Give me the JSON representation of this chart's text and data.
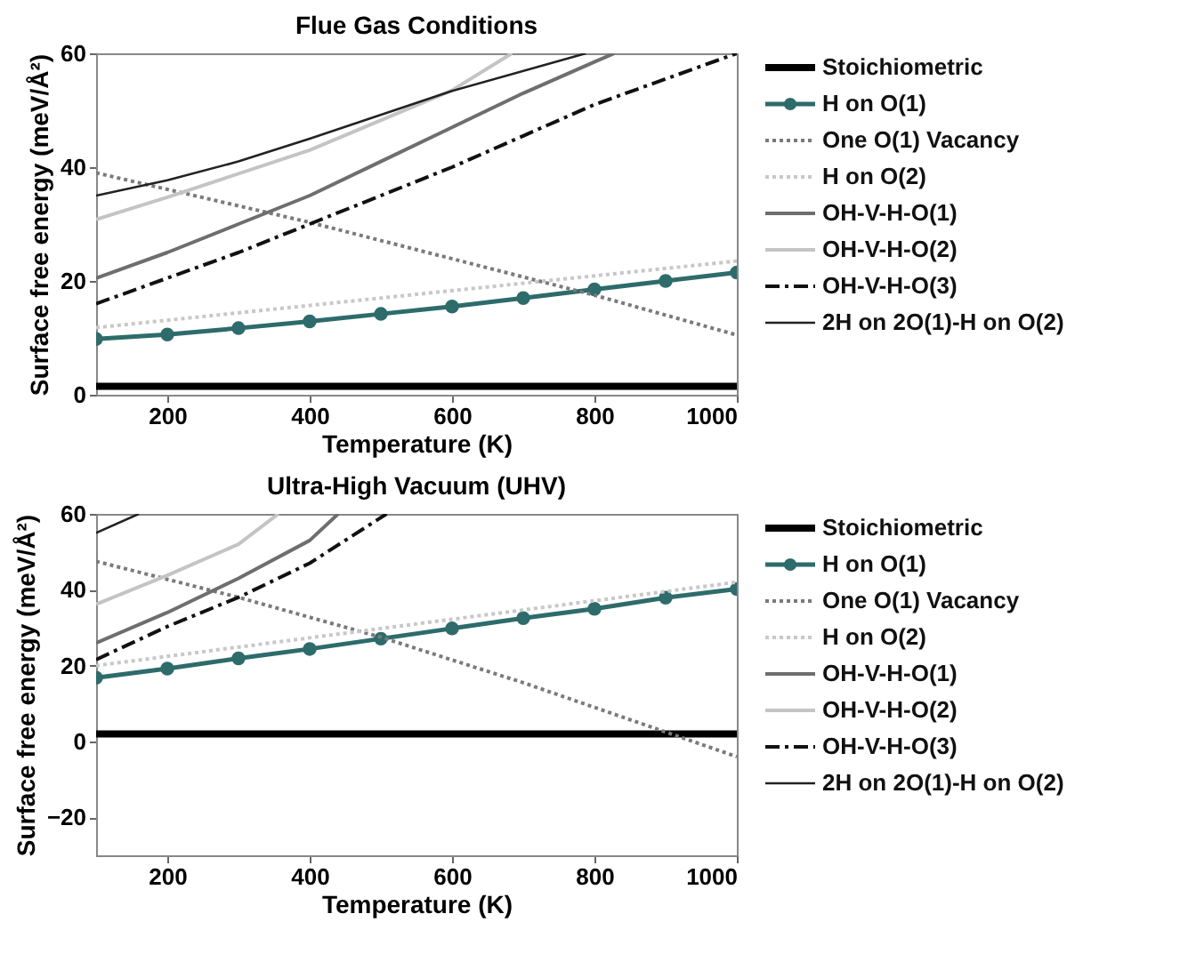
{
  "chart_data": [
    {
      "type": "line",
      "title": "Flue Gas Conditions",
      "xlabel": "Temperature (K)",
      "ylabel": "Surface free energy (meV/Å²)",
      "xlim": [
        100,
        1000
      ],
      "xticks": [
        200,
        400,
        600,
        800,
        1000
      ],
      "ylim": [
        0,
        60
      ],
      "yticks": [
        0,
        20,
        40,
        60
      ],
      "legend": "right",
      "grid": false,
      "series": [
        {
          "name": "Stoichiometric",
          "color": "#000000",
          "line_style": "solid",
          "marker": "none",
          "x": [
            100,
            1000
          ],
          "values": [
            1.5,
            1.5
          ]
        },
        {
          "name": "H on O(1)",
          "color": "#2e6b6b",
          "line_style": "solid",
          "marker": "circle",
          "x": [
            100,
            200,
            300,
            400,
            500,
            600,
            700,
            800,
            900,
            1000
          ],
          "values": [
            9.8,
            10.6,
            11.7,
            12.9,
            14.2,
            15.5,
            17,
            18.5,
            20,
            21.5
          ]
        },
        {
          "name": "One O(1) Vacancy",
          "color": "#7a7a7a",
          "line_style": "dotted",
          "marker": "none",
          "x": [
            100,
            400,
            800,
            1000
          ],
          "values": [
            39,
            30.3,
            17.5,
            10.5
          ]
        },
        {
          "name": "H on O(2)",
          "color": "#c8c8c8",
          "line_style": "dotted",
          "marker": "none",
          "x": [
            100,
            1000
          ],
          "values": [
            11.8,
            23.5
          ]
        },
        {
          "name": "OH-V-H-O(1)",
          "color": "#6e6e6e",
          "line_style": "solid",
          "marker": "none",
          "x": [
            100,
            200,
            300,
            400,
            500,
            600,
            700,
            800,
            828
          ],
          "values": [
            20.5,
            25,
            30,
            35,
            41,
            47,
            53,
            58.5,
            60
          ]
        },
        {
          "name": "OH-V-H-O(2)",
          "color": "#c4c4c4",
          "line_style": "solid",
          "marker": "none",
          "x": [
            100,
            200,
            400,
            600,
            684
          ],
          "values": [
            30.8,
            34.7,
            43,
            53.5,
            60
          ]
        },
        {
          "name": "OH-V-H-O(3)",
          "color": "#111111",
          "line_style": "dashdot",
          "marker": "none",
          "x": [
            100,
            200,
            300,
            400,
            500,
            600,
            700,
            800,
            900,
            1000
          ],
          "values": [
            16,
            20.5,
            25,
            30,
            35,
            40,
            45.5,
            51,
            55.5,
            60
          ]
        },
        {
          "name": "2H on 2O(1)-H on O(2)",
          "color": "#222222",
          "line_style": "solid",
          "marker": "none",
          "x": [
            100,
            200,
            300,
            400,
            600,
            788
          ],
          "values": [
            35,
            37.7,
            41,
            45,
            53.4,
            60
          ]
        }
      ]
    },
    {
      "type": "line",
      "title": "Ultra-High Vacuum (UHV)",
      "xlabel": "Temperature (K)",
      "ylabel": "Surface free energy (meV/Å²)",
      "xlim": [
        100,
        1000
      ],
      "xticks": [
        200,
        400,
        600,
        800,
        1000
      ],
      "ylim": [
        -30,
        60
      ],
      "yticks": [
        -20,
        0,
        20,
        40,
        60
      ],
      "legend": "right",
      "grid": false,
      "series": [
        {
          "name": "Stoichiometric",
          "color": "#000000",
          "line_style": "solid",
          "marker": "none",
          "x": [
            100,
            1000
          ],
          "values": [
            2,
            2
          ]
        },
        {
          "name": "H on O(1)",
          "color": "#2e6b6b",
          "line_style": "solid",
          "marker": "circle",
          "x": [
            100,
            200,
            300,
            400,
            500,
            600,
            700,
            800,
            900,
            1000
          ],
          "values": [
            16.8,
            19.2,
            21.9,
            24.4,
            27.1,
            29.8,
            32.5,
            35,
            37.9,
            40.2
          ]
        },
        {
          "name": "One O(1) Vacancy",
          "color": "#7a7a7a",
          "line_style": "dotted",
          "marker": "none",
          "x": [
            100,
            300,
            500,
            700,
            900,
            1000
          ],
          "values": [
            47.5,
            38,
            27.5,
            15.5,
            2.5,
            -4
          ]
        },
        {
          "name": "H on O(2)",
          "color": "#c8c8c8",
          "line_style": "dotted",
          "marker": "none",
          "x": [
            100,
            1000
          ],
          "values": [
            20,
            42
          ]
        },
        {
          "name": "OH-V-H-O(1)",
          "color": "#6e6e6e",
          "line_style": "solid",
          "marker": "none",
          "x": [
            100,
            200,
            300,
            400,
            440
          ],
          "values": [
            26,
            34,
            43,
            53,
            60
          ]
        },
        {
          "name": "OH-V-H-O(2)",
          "color": "#c4c4c4",
          "line_style": "solid",
          "marker": "none",
          "x": [
            100,
            200,
            300,
            356
          ],
          "values": [
            36.2,
            43.8,
            52,
            60
          ]
        },
        {
          "name": "OH-V-H-O(3)",
          "color": "#111111",
          "line_style": "dashdot",
          "marker": "none",
          "x": [
            100,
            200,
            300,
            400,
            508
          ],
          "values": [
            21.6,
            30.3,
            38,
            47,
            60
          ]
        },
        {
          "name": "2H on 2O(1)-H on O(2)",
          "color": "#222222",
          "line_style": "solid",
          "marker": "none",
          "x": [
            100,
            160
          ],
          "values": [
            55,
            60
          ]
        }
      ]
    }
  ]
}
